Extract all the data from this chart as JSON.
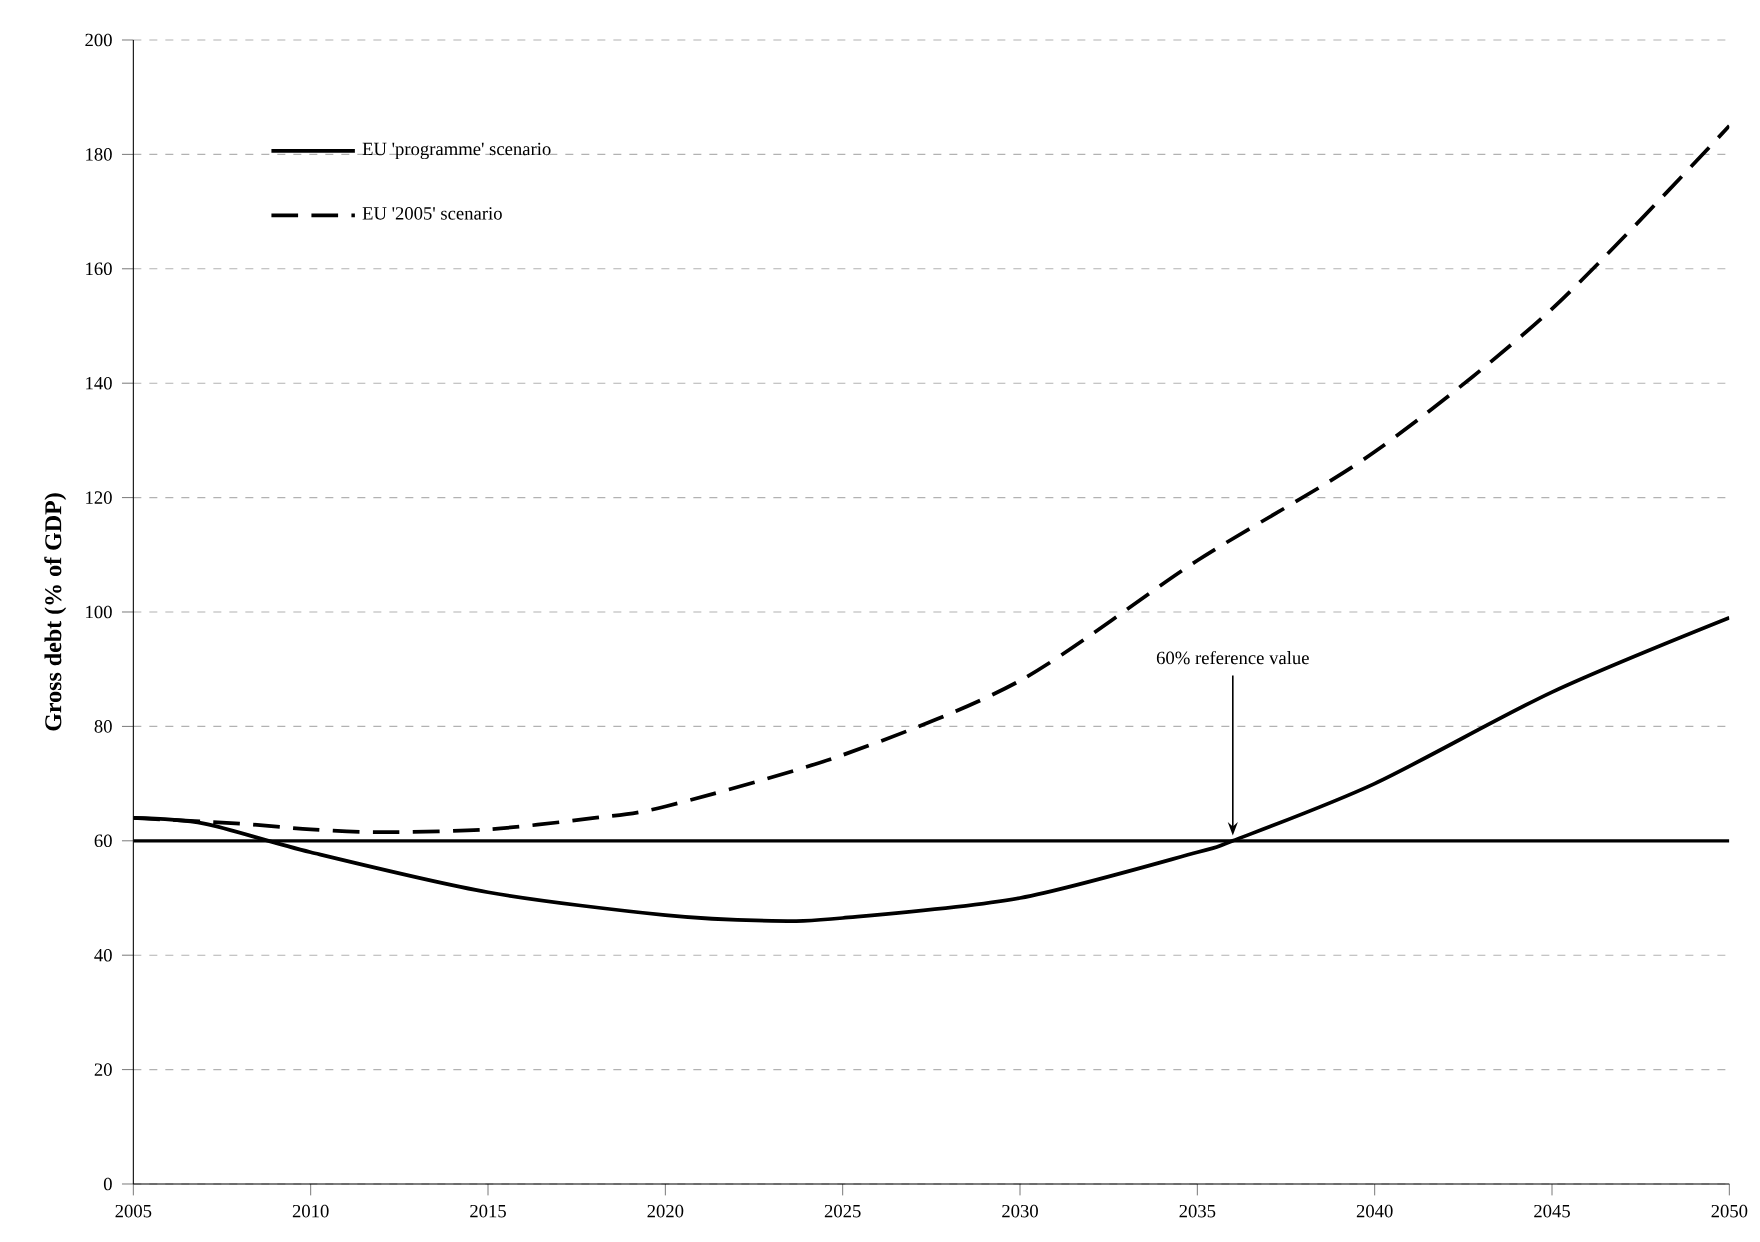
{
  "chart_data": {
    "type": "line",
    "ylabel": "Gross debt (% of GDP)",
    "x": [
      2005,
      2007,
      2010,
      2015,
      2020,
      2023,
      2025,
      2030,
      2035,
      2036,
      2040,
      2045,
      2050
    ],
    "series": [
      {
        "name": "EU 'programme' scenario",
        "color": "#000000",
        "line_style": "solid",
        "values": [
          64,
          63,
          58,
          51,
          47,
          46,
          46.5,
          50,
          58,
          60,
          70,
          86,
          99
        ]
      },
      {
        "name": "EU '2005' scenario",
        "color": "#000000",
        "line_style": "dashed",
        "x": [
          2005,
          2008,
          2010,
          2012,
          2015,
          2018,
          2020,
          2025,
          2030,
          2035,
          2040,
          2045,
          2050
        ],
        "values": [
          64,
          63,
          62,
          61.5,
          62,
          64,
          66,
          75,
          88,
          109,
          128,
          153,
          185
        ]
      }
    ],
    "ref_lines": [
      {
        "axis": "y",
        "value": 60,
        "color": "#000000"
      }
    ],
    "annotations": [
      {
        "text": "60% reference value",
        "x": 2036,
        "y": 60
      }
    ],
    "xlim": [
      2005,
      2050
    ],
    "xticks": [
      2005,
      2010,
      2015,
      2020,
      2025,
      2030,
      2035,
      2040,
      2045,
      2050
    ],
    "ylim": [
      0,
      200
    ],
    "yticks": [
      0,
      20,
      40,
      60,
      80,
      100,
      120,
      140,
      160,
      180,
      200
    ],
    "grid": "y",
    "legend": "top left",
    "marker": "none"
  }
}
